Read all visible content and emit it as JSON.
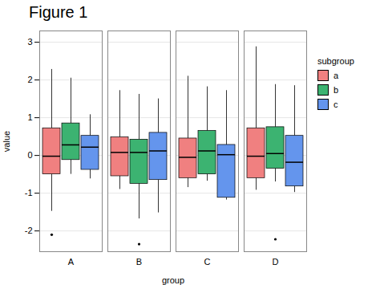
{
  "chart_data": {
    "type": "box",
    "title": "Figure 1",
    "xlabel": "group",
    "ylabel": "value",
    "categories": [
      "A",
      "B",
      "C",
      "D"
    ],
    "legend_title": "subgroup",
    "legend": "right",
    "grid": true,
    "ylim": [
      -2.55,
      3.3
    ],
    "yticks": [
      -2,
      -1,
      0,
      1,
      2,
      3
    ],
    "series": [
      {
        "name": "a",
        "color": "#F08080",
        "values": [
          {
            "q1": -0.5,
            "median": -0.02,
            "q3": 0.72,
            "whisker_low": -1.48,
            "whisker_high": 2.28,
            "outliers": [
              -2.1
            ]
          },
          {
            "q1": -0.55,
            "median": 0.08,
            "q3": 0.48,
            "whisker_low": -0.9,
            "whisker_high": 1.72,
            "outliers": []
          },
          {
            "q1": -0.6,
            "median": -0.05,
            "q3": 0.45,
            "whisker_low": -0.85,
            "whisker_high": 2.1,
            "outliers": []
          },
          {
            "q1": -0.6,
            "median": -0.02,
            "q3": 0.72,
            "whisker_low": -0.92,
            "whisker_high": 2.88,
            "outliers": []
          }
        ]
      },
      {
        "name": "b",
        "color": "#3CB371",
        "values": [
          {
            "q1": -0.12,
            "median": 0.28,
            "q3": 0.85,
            "whisker_low": -0.5,
            "whisker_high": 2.05,
            "outliers": []
          },
          {
            "q1": -0.75,
            "median": 0.08,
            "q3": 0.42,
            "whisker_low": -1.68,
            "whisker_high": 1.62,
            "outliers": [
              -2.35
            ]
          },
          {
            "q1": -0.5,
            "median": 0.12,
            "q3": 0.65,
            "whisker_low": -0.68,
            "whisker_high": 1.82,
            "outliers": []
          },
          {
            "q1": -0.35,
            "median": 0.05,
            "q3": 0.75,
            "whisker_low": -0.7,
            "whisker_high": 1.88,
            "outliers": [
              -2.22
            ]
          }
        ]
      },
      {
        "name": "c",
        "color": "#6495ED",
        "values": [
          {
            "q1": -0.38,
            "median": 0.22,
            "q3": 0.52,
            "whisker_low": -0.62,
            "whisker_high": 1.08,
            "outliers": []
          },
          {
            "q1": -0.65,
            "median": 0.12,
            "q3": 0.6,
            "whisker_low": -1.52,
            "whisker_high": 1.5,
            "outliers": []
          },
          {
            "q1": -1.12,
            "median": 0.02,
            "q3": 0.28,
            "whisker_low": -1.18,
            "whisker_high": 1.72,
            "outliers": []
          },
          {
            "q1": -0.82,
            "median": -0.18,
            "q3": 0.52,
            "whisker_low": -0.98,
            "whisker_high": 1.85,
            "outliers": []
          }
        ]
      }
    ]
  }
}
